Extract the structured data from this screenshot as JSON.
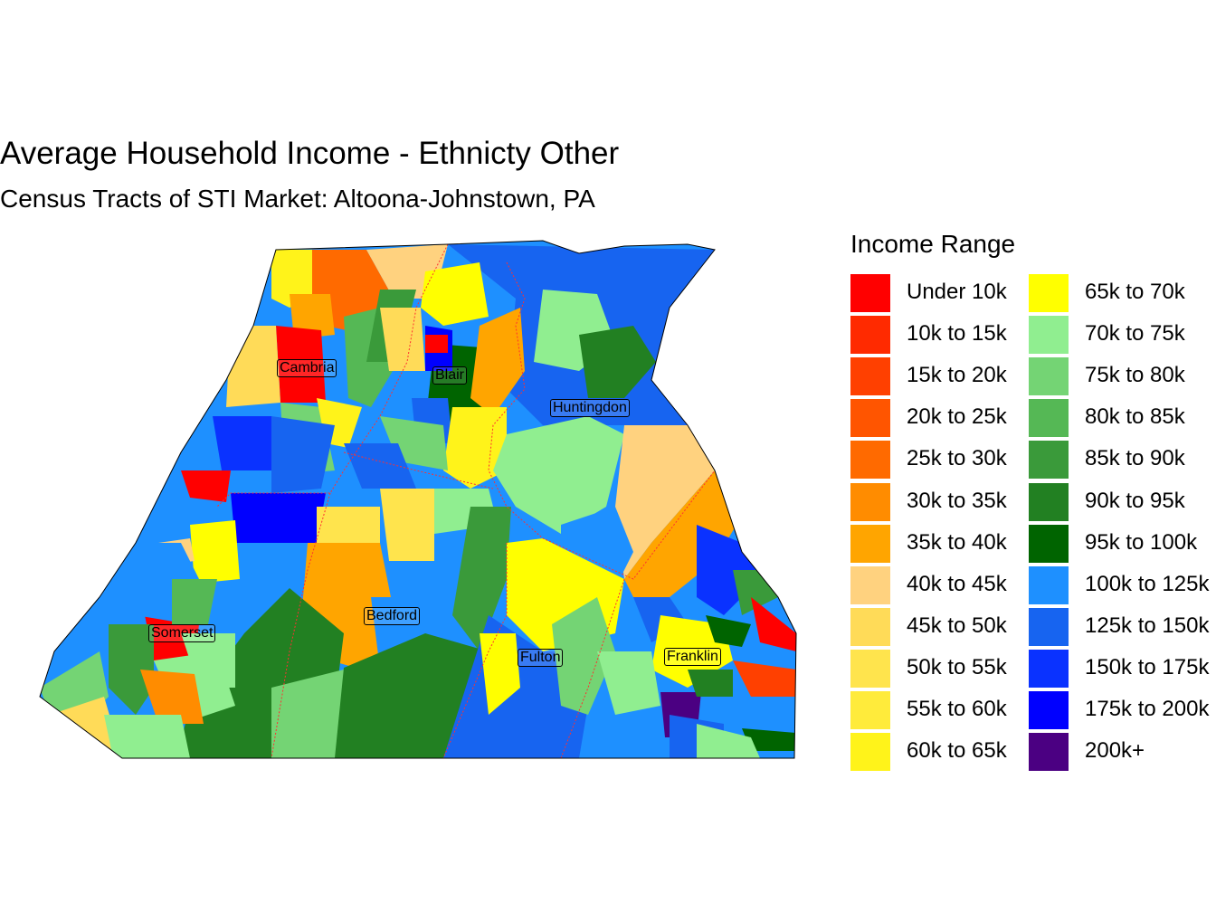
{
  "title": "Average Household Income - Ethnicty Other",
  "subtitle": "Census Tracts of STI Market: Altoona-Johnstown, PA",
  "legend": {
    "title": "Income Range",
    "items": [
      {
        "label": "Under 10k",
        "color": "#ff0000"
      },
      {
        "label": "10k to 15k",
        "color": "#ff2a00"
      },
      {
        "label": "15k to 20k",
        "color": "#ff4000"
      },
      {
        "label": "20k to 25k",
        "color": "#ff5500"
      },
      {
        "label": "25k to 30k",
        "color": "#ff6a00"
      },
      {
        "label": "30k to 35k",
        "color": "#ff8c00"
      },
      {
        "label": "35k to 40k",
        "color": "#ffa500"
      },
      {
        "label": "40k to 45k",
        "color": "#ffd27f"
      },
      {
        "label": "45k to 50k",
        "color": "#ffdb58"
      },
      {
        "label": "50k to 55k",
        "color": "#ffe44d"
      },
      {
        "label": "55k to 60k",
        "color": "#ffeb3b"
      },
      {
        "label": "60k to 65k",
        "color": "#fff31a"
      },
      {
        "label": "65k to 70k",
        "color": "#ffff00"
      },
      {
        "label": "70k to 75k",
        "color": "#90ee90"
      },
      {
        "label": "75k to 80k",
        "color": "#74d474"
      },
      {
        "label": "80k to 85k",
        "color": "#55b855"
      },
      {
        "label": "85k to 90k",
        "color": "#3a9a3a"
      },
      {
        "label": "90k to 95k",
        "color": "#228022"
      },
      {
        "label": "95k to 100k",
        "color": "#006400"
      },
      {
        "label": "100k to 125k",
        "color": "#1e90ff"
      },
      {
        "label": "125k to 150k",
        "color": "#1764f0"
      },
      {
        "label": "150k to 175k",
        "color": "#0a32ff"
      },
      {
        "label": "175k to 200k",
        "color": "#0000ff"
      },
      {
        "label": "200k+",
        "color": "#4b0082"
      }
    ]
  },
  "counties": [
    {
      "name": "Cambria"
    },
    {
      "name": "Blair"
    },
    {
      "name": "Huntingdon"
    },
    {
      "name": "Somerset"
    },
    {
      "name": "Bedford"
    },
    {
      "name": "Fulton"
    },
    {
      "name": "Franklin"
    }
  ]
}
